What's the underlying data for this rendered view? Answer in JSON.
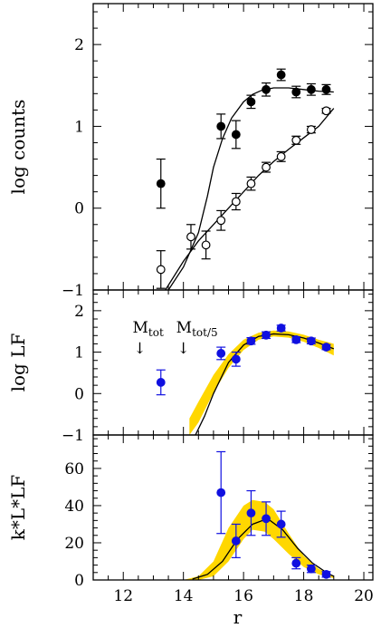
{
  "chart_data": [
    {
      "type": "scatter",
      "ylabel": "log counts",
      "xlim": [
        11,
        20.3
      ],
      "ylim": [
        -1,
        2.5
      ],
      "y_ticks": [
        "2",
        "1",
        "0",
        "−1"
      ],
      "series": [
        {
          "marker": "filled-circle",
          "points": [
            {
              "x": 13.25,
              "y": 0.3,
              "err": 0.3
            },
            {
              "x": 15.25,
              "y": 1.0,
              "err": 0.15
            },
            {
              "x": 15.75,
              "y": 0.9,
              "err": 0.17
            },
            {
              "x": 16.25,
              "y": 1.3,
              "err": 0.08
            },
            {
              "x": 16.75,
              "y": 1.45,
              "err": 0.08
            },
            {
              "x": 17.25,
              "y": 1.63,
              "err": 0.07
            },
            {
              "x": 17.75,
              "y": 1.42,
              "err": 0.07
            },
            {
              "x": 18.25,
              "y": 1.45,
              "err": 0.07
            },
            {
              "x": 18.75,
              "y": 1.45,
              "err": 0.06
            }
          ]
        },
        {
          "marker": "open-circle",
          "points": [
            {
              "x": 13.25,
              "y": -0.75,
              "err": 0.23
            },
            {
              "x": 14.25,
              "y": -0.35,
              "err": 0.15
            },
            {
              "x": 14.75,
              "y": -0.45,
              "err": 0.17
            },
            {
              "x": 15.25,
              "y": -0.15,
              "err": 0.12
            },
            {
              "x": 15.75,
              "y": 0.08,
              "err": 0.1
            },
            {
              "x": 16.25,
              "y": 0.3,
              "err": 0.08
            },
            {
              "x": 16.75,
              "y": 0.5,
              "err": 0.06
            },
            {
              "x": 17.25,
              "y": 0.63,
              "err": 0.06
            },
            {
              "x": 17.75,
              "y": 0.83,
              "err": 0.05
            },
            {
              "x": 18.25,
              "y": 0.96,
              "err": 0.04
            },
            {
              "x": 18.75,
              "y": 1.19,
              "err": 0.03
            }
          ]
        }
      ],
      "fit_curves": [
        {
          "x": [
            13.5,
            14.0,
            14.5,
            14.8,
            15.0,
            15.3,
            15.6,
            16.0,
            16.3,
            16.6,
            17.0,
            17.5,
            18.0,
            18.5,
            19.0
          ],
          "y": [
            -1.0,
            -0.72,
            -0.3,
            0.15,
            0.5,
            0.85,
            1.1,
            1.3,
            1.39,
            1.44,
            1.47,
            1.47,
            1.45,
            1.43,
            1.42
          ]
        },
        {
          "x": [
            13.4,
            14.0,
            14.5,
            15.0,
            15.5,
            16.0,
            16.5,
            17.0,
            17.5,
            18.0,
            18.5,
            19.0
          ],
          "y": [
            -1.0,
            -0.65,
            -0.4,
            -0.2,
            0.0,
            0.2,
            0.4,
            0.57,
            0.72,
            0.86,
            1.0,
            1.22
          ]
        }
      ]
    },
    {
      "type": "scatter",
      "ylabel": "log LF",
      "xlim": [
        11,
        20.3
      ],
      "ylim": [
        -1,
        2.5
      ],
      "y_ticks": [
        "2",
        "1",
        "0",
        "−1"
      ],
      "series": [
        {
          "marker": "filled-circle",
          "color": "#1010e0",
          "points": [
            {
              "x": 13.25,
              "y": 0.27,
              "err": 0.3
            },
            {
              "x": 15.25,
              "y": 0.97,
              "err": 0.15
            },
            {
              "x": 15.75,
              "y": 0.83,
              "err": 0.17
            },
            {
              "x": 16.25,
              "y": 1.27,
              "err": 0.08
            },
            {
              "x": 16.75,
              "y": 1.41,
              "err": 0.08
            },
            {
              "x": 17.25,
              "y": 1.58,
              "err": 0.07
            },
            {
              "x": 17.75,
              "y": 1.3,
              "err": 0.07
            },
            {
              "x": 18.25,
              "y": 1.27,
              "err": 0.07
            },
            {
              "x": 18.75,
              "y": 1.12,
              "err": 0.06
            }
          ]
        }
      ],
      "band": {
        "color": "#ffd700",
        "x": [
          14.2,
          14.5,
          15.0,
          15.5,
          16.0,
          16.5,
          17.0,
          17.5,
          18.0,
          18.5,
          19.0
        ],
        "lower": [
          -1.0,
          -0.7,
          0.02,
          0.62,
          1.05,
          1.3,
          1.38,
          1.35,
          1.25,
          1.1,
          0.92
        ],
        "upper": [
          -0.6,
          -0.2,
          0.45,
          0.95,
          1.3,
          1.47,
          1.52,
          1.5,
          1.42,
          1.3,
          1.2
        ]
      },
      "fit_curve": {
        "x": [
          14.4,
          14.7,
          15.0,
          15.5,
          16.0,
          16.5,
          17.0,
          17.5,
          18.0,
          18.5,
          19.0
        ],
        "y": [
          -1.0,
          -0.55,
          0.0,
          0.75,
          1.17,
          1.38,
          1.44,
          1.42,
          1.34,
          1.22,
          1.08
        ]
      },
      "annotations": [
        {
          "label": "M",
          "sub": "tot",
          "arrow": "↓",
          "x": 12.55
        },
        {
          "label": "M",
          "sub": "tot/5",
          "arrow": "↓",
          "x": 14.0
        }
      ]
    },
    {
      "type": "scatter",
      "ylabel": "k*L*LF",
      "xlabel": "r",
      "xlim": [
        11,
        20.3
      ],
      "ylim": [
        0,
        78
      ],
      "x_ticks": [
        "12",
        "14",
        "16",
        "18",
        "20"
      ],
      "x_tick_values": [
        12,
        14,
        16,
        18,
        20
      ],
      "y_ticks": [
        "60",
        "40",
        "20",
        "0"
      ],
      "series": [
        {
          "marker": "filled-circle",
          "color": "#1010e0",
          "points": [
            {
              "x": 15.25,
              "y": 47,
              "err": 22
            },
            {
              "x": 15.75,
              "y": 21,
              "err": 9
            },
            {
              "x": 16.25,
              "y": 36,
              "err": 12
            },
            {
              "x": 16.75,
              "y": 33,
              "err": 9
            },
            {
              "x": 17.25,
              "y": 30,
              "err": 7
            },
            {
              "x": 17.75,
              "y": 9,
              "err": 3
            },
            {
              "x": 18.25,
              "y": 6,
              "err": 2
            },
            {
              "x": 18.75,
              "y": 3,
              "err": 1.5
            }
          ]
        }
      ],
      "band": {
        "color": "#ffd700",
        "x": [
          14.0,
          14.5,
          15.0,
          15.5,
          16.0,
          16.3,
          16.7,
          17.0,
          17.5,
          18.0,
          18.5,
          19.0
        ],
        "lower": [
          0,
          0,
          2,
          10,
          22,
          27,
          26,
          22,
          14,
          7,
          3,
          1
        ],
        "upper": [
          0,
          2,
          10,
          28,
          40,
          43,
          42,
          38,
          25,
          13,
          6,
          2
        ]
      },
      "fit_curve": {
        "x": [
          14.3,
          14.8,
          15.3,
          15.8,
          16.3,
          16.8,
          17.3,
          17.8,
          18.3,
          18.8,
          19.0
        ],
        "y": [
          0.5,
          3,
          10,
          22,
          30,
          33,
          27,
          17,
          9,
          3.5,
          2
        ]
      }
    }
  ]
}
